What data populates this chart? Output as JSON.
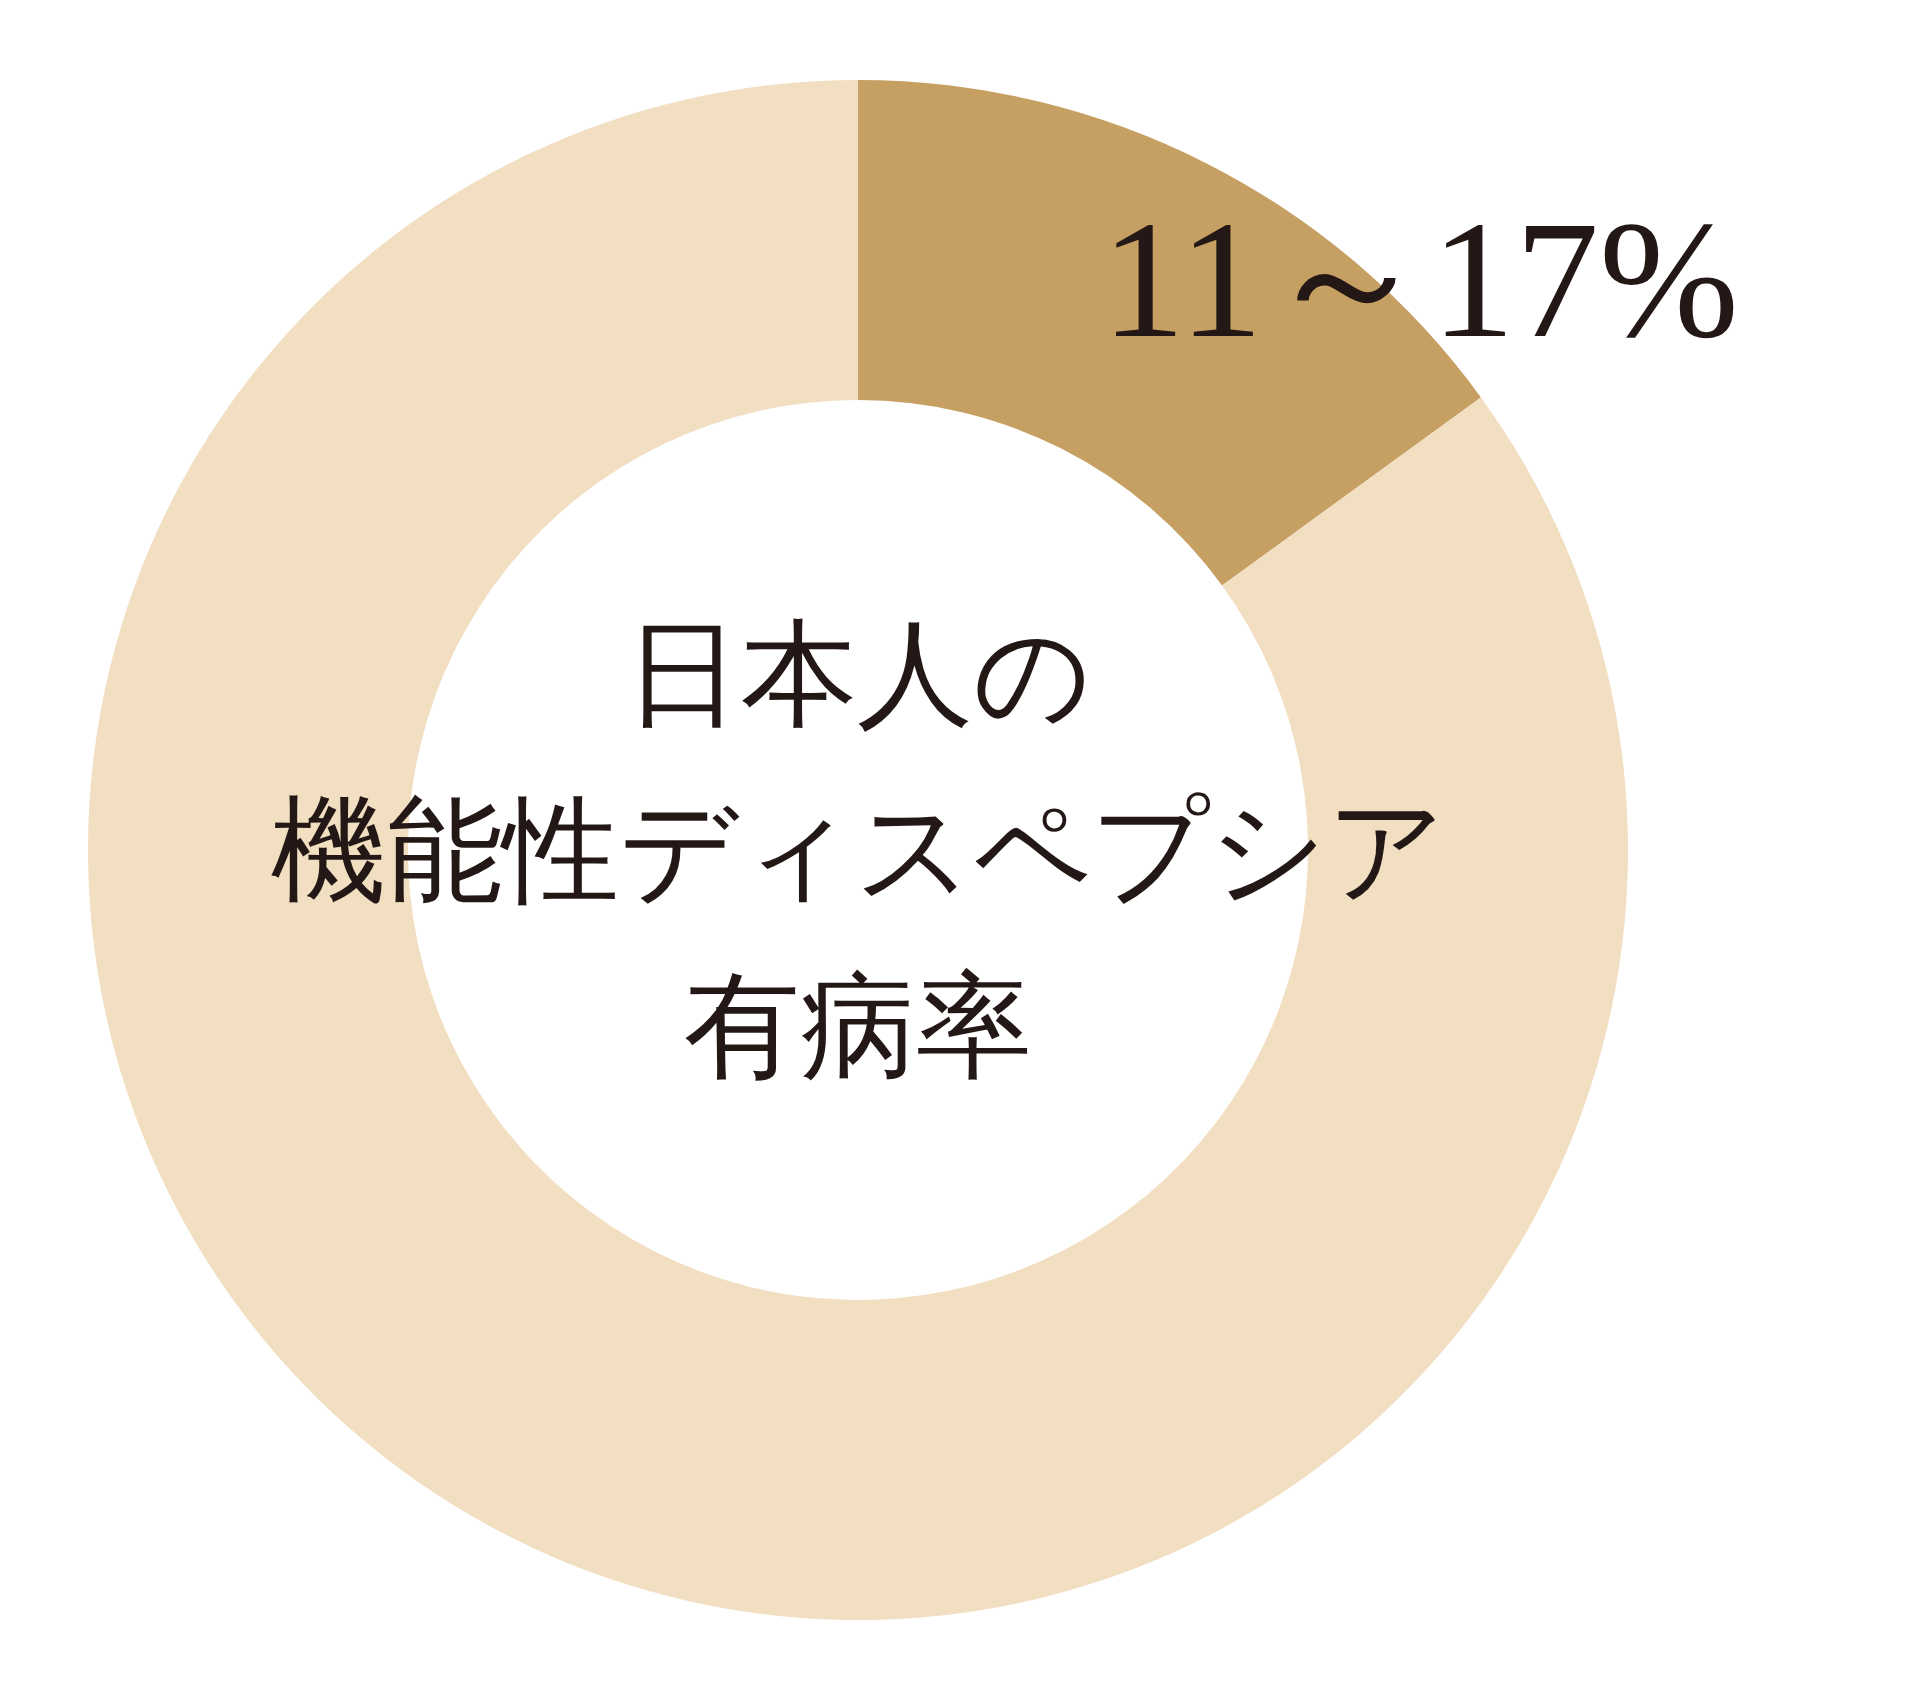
{
  "chart_data": {
    "type": "donut",
    "title": "日本人の機能性ディスペプシア有病率",
    "categories": [
      null,
      null
    ],
    "values": [
      15,
      85
    ],
    "colors": [
      "#c69f63",
      "#f2dfc2"
    ],
    "annotations": [
      "11～17%"
    ]
  }
}
